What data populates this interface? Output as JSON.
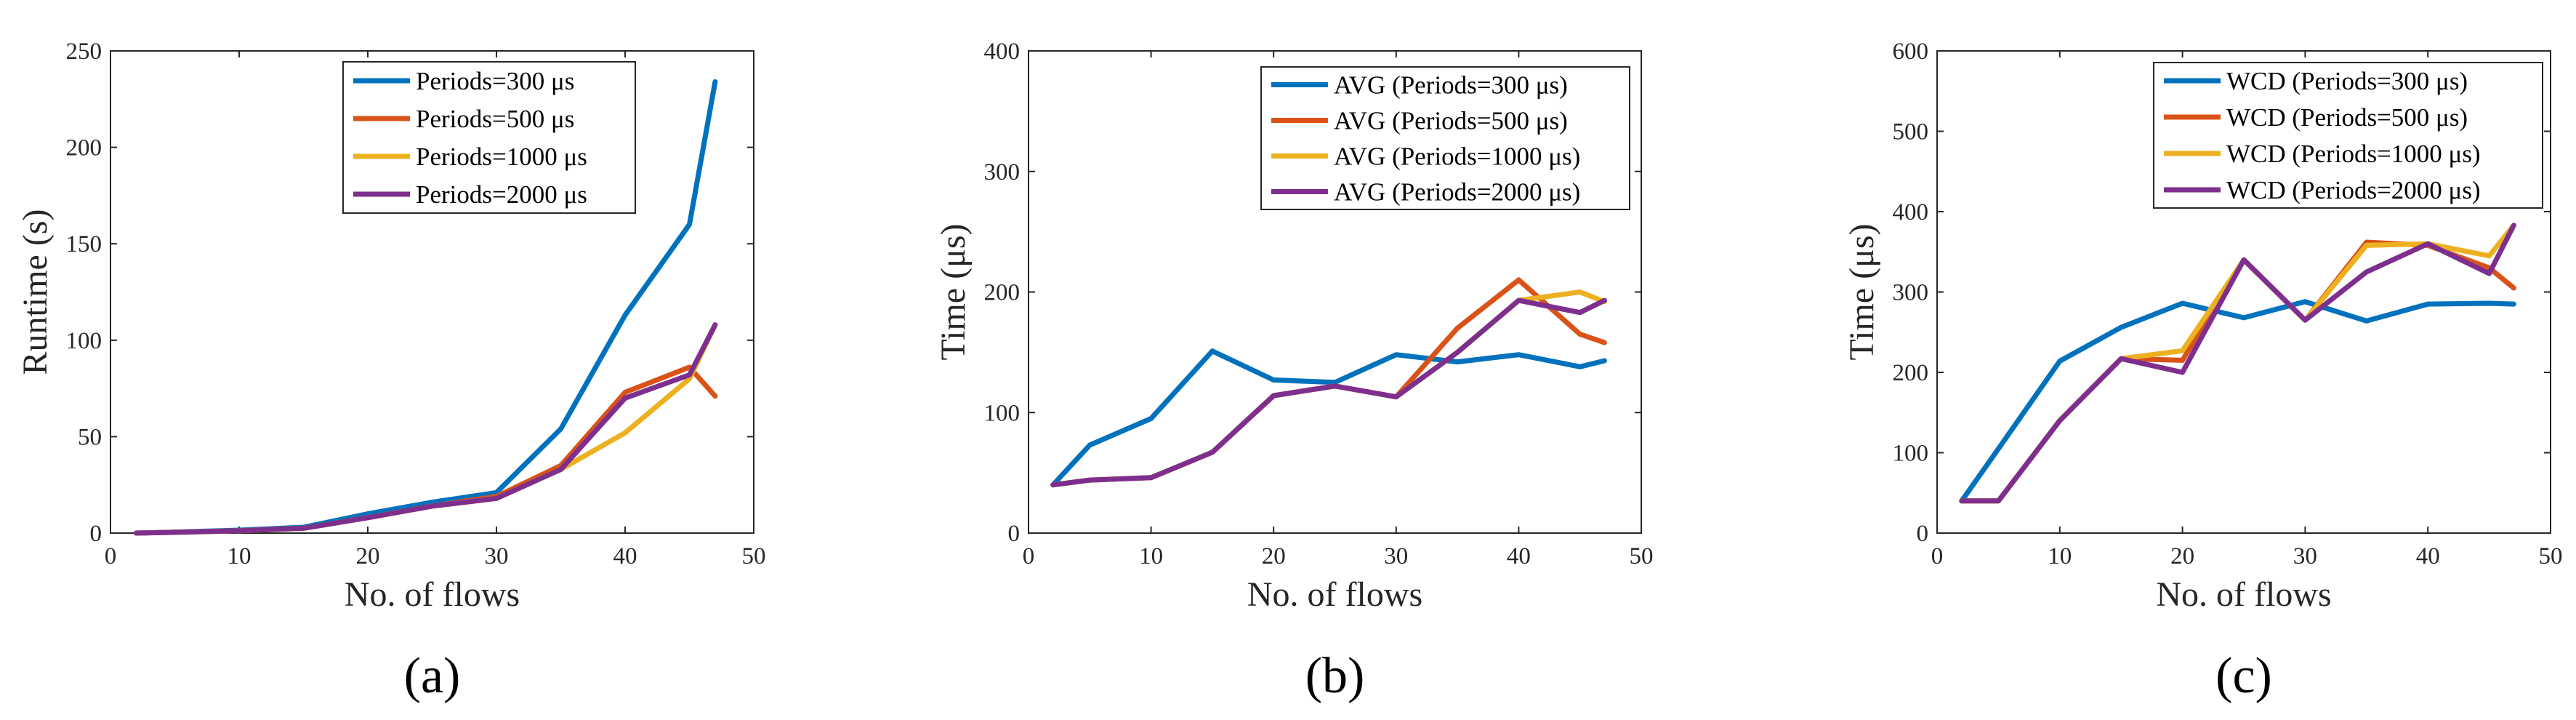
{
  "chart_data": [
    {
      "type": "line",
      "panel_label": "(a)",
      "xlabel": "No. of flows",
      "ylabel": "Runtime (s)",
      "xlim": [
        0,
        50
      ],
      "ylim": [
        0,
        250
      ],
      "xticks": [
        0,
        10,
        20,
        30,
        40,
        50
      ],
      "yticks": [
        0,
        50,
        100,
        150,
        200,
        250
      ],
      "grid": false,
      "legend_position": "top-right",
      "series": [
        {
          "name": "Periods=300 μs",
          "color": "#0072BD",
          "x": [
            2,
            5,
            10,
            15,
            20,
            25,
            30,
            35,
            40,
            45,
            47
          ],
          "y": [
            0,
            0.5,
            1.5,
            3,
            10,
            16,
            21,
            54,
            113,
            160,
            234
          ]
        },
        {
          "name": "Periods=500 μs",
          "color": "#D95319",
          "x": [
            2,
            5,
            10,
            15,
            20,
            25,
            30,
            35,
            40,
            45,
            47
          ],
          "y": [
            0,
            0.4,
            1.2,
            2.5,
            8,
            14,
            19,
            35,
            73,
            86,
            71
          ]
        },
        {
          "name": "Periods=1000 μs",
          "color": "#EDB120",
          "x": [
            2,
            5,
            10,
            15,
            20,
            25,
            30,
            35,
            40,
            45,
            47
          ],
          "y": [
            0,
            0.4,
            1.2,
            2.5,
            8,
            14,
            18,
            33,
            52,
            80,
            108
          ]
        },
        {
          "name": "Periods=2000 μs",
          "color": "#7E2F8E",
          "x": [
            2,
            5,
            10,
            15,
            20,
            25,
            30,
            35,
            40,
            45,
            47
          ],
          "y": [
            0,
            0.4,
            1.2,
            2.5,
            8,
            14,
            18,
            33,
            70,
            82,
            108
          ]
        }
      ]
    },
    {
      "type": "line",
      "panel_label": "(b)",
      "xlabel": "No. of flows",
      "ylabel": "Time (μs)",
      "xlim": [
        0,
        50
      ],
      "ylim": [
        0,
        400
      ],
      "xticks": [
        0,
        10,
        20,
        30,
        40,
        50
      ],
      "yticks": [
        0,
        100,
        200,
        300,
        400
      ],
      "grid": false,
      "legend_position": "top-right",
      "series": [
        {
          "name": "AVG (Periods=300 μs)",
          "color": "#0072BD",
          "x": [
            2,
            5,
            10,
            15,
            20,
            25,
            30,
            35,
            40,
            45,
            47
          ],
          "y": [
            40,
            73,
            95,
            151,
            127,
            125,
            148,
            142,
            148,
            138,
            143
          ]
        },
        {
          "name": "AVG (Periods=500 μs)",
          "color": "#D95319",
          "x": [
            2,
            5,
            10,
            15,
            20,
            25,
            30,
            35,
            40,
            45,
            47
          ],
          "y": [
            40,
            44,
            46,
            67,
            114,
            122,
            113,
            170,
            210,
            165,
            158
          ]
        },
        {
          "name": "AVG (Periods=1000 μs)",
          "color": "#EDB120",
          "x": [
            2,
            5,
            10,
            15,
            20,
            25,
            30,
            35,
            40,
            45,
            47
          ],
          "y": [
            40,
            44,
            46,
            67,
            114,
            122,
            113,
            150,
            193,
            200,
            192
          ]
        },
        {
          "name": "AVG (Periods=2000 μs)",
          "color": "#7E2F8E",
          "x": [
            2,
            5,
            10,
            15,
            20,
            25,
            30,
            35,
            40,
            45,
            47
          ],
          "y": [
            40,
            44,
            46,
            67,
            114,
            122,
            113,
            150,
            193,
            183,
            193
          ]
        }
      ]
    },
    {
      "type": "line",
      "panel_label": "(c)",
      "xlabel": "No. of flows",
      "ylabel": "Time (μs)",
      "xlim": [
        0,
        50
      ],
      "ylim": [
        0,
        600
      ],
      "xticks": [
        0,
        10,
        20,
        30,
        40,
        50
      ],
      "yticks": [
        0,
        100,
        200,
        300,
        400,
        500,
        600
      ],
      "grid": false,
      "legend_position": "top-right",
      "series": [
        {
          "name": "WCD (Periods=300 μs)",
          "color": "#0072BD",
          "x": [
            2,
            5,
            10,
            15,
            20,
            25,
            30,
            35,
            40,
            45,
            47
          ],
          "y": [
            40,
            105,
            214,
            256,
            286,
            268,
            288,
            264,
            285,
            286,
            285
          ]
        },
        {
          "name": "WCD (Periods=500 μs)",
          "color": "#D95319",
          "x": [
            2,
            5,
            10,
            15,
            20,
            25,
            30,
            35,
            40,
            45,
            47
          ],
          "y": [
            40,
            40,
            140,
            217,
            215,
            340,
            265,
            362,
            358,
            330,
            305
          ]
        },
        {
          "name": "WCD (Periods=1000 μs)",
          "color": "#EDB120",
          "x": [
            2,
            5,
            10,
            15,
            20,
            25,
            30,
            35,
            40,
            45,
            47
          ],
          "y": [
            40,
            40,
            140,
            217,
            227,
            340,
            265,
            358,
            360,
            345,
            383
          ]
        },
        {
          "name": "WCD (Periods=2000 μs)",
          "color": "#7E2F8E",
          "x": [
            2,
            5,
            10,
            15,
            20,
            25,
            30,
            35,
            40,
            45,
            47
          ],
          "y": [
            40,
            40,
            140,
            217,
            200,
            340,
            265,
            325,
            360,
            323,
            383
          ]
        }
      ]
    }
  ]
}
